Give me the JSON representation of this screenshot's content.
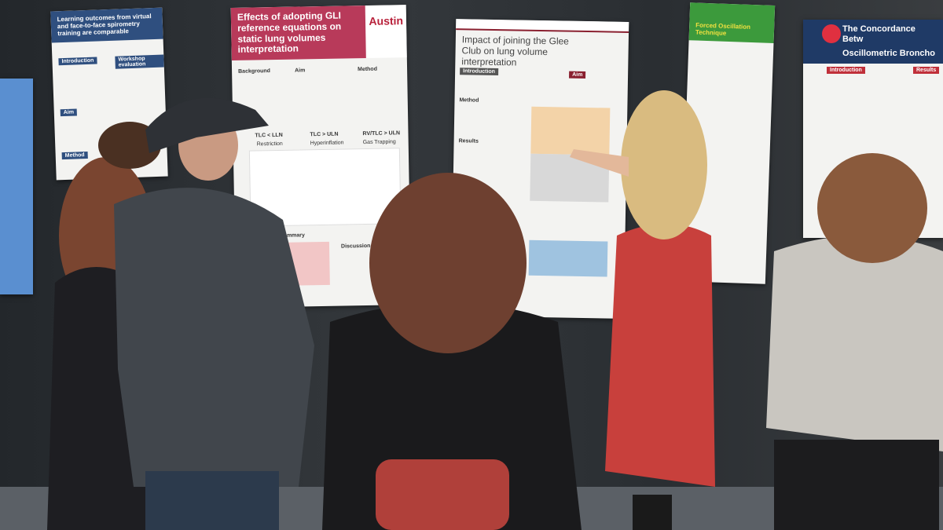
{
  "posters": [
    {
      "title": "Learning outcomes from virtual and face-to-face spirometry training are comparable",
      "headings": [
        "Introduction",
        "Aim",
        "Method",
        "Workshop evaluation"
      ]
    },
    {
      "title": "Effects of adopting GLI reference equations on static lung volumes interpretation",
      "logo": "Austin",
      "headings": [
        "Background",
        "Aim",
        "Method",
        "Results Summary",
        "Discussion"
      ],
      "panels": [
        "TLC < LLN",
        "TLC > ULN",
        "RV/TLC > ULN"
      ],
      "panel_labels": [
        "Restriction",
        "Hyperinflation",
        "Gas Trapping"
      ]
    },
    {
      "title": "Impact of joining the Glee Club on lung volume interpretation",
      "headings": [
        "Introduction",
        "Aim",
        "Method",
        "Results"
      ]
    },
    {
      "title": "Forced Oscillation Technique"
    },
    {
      "title": "The Concordance Betw",
      "subtitle": "Oscillometric Broncho",
      "headings": [
        "Introduction",
        "Results"
      ]
    }
  ]
}
